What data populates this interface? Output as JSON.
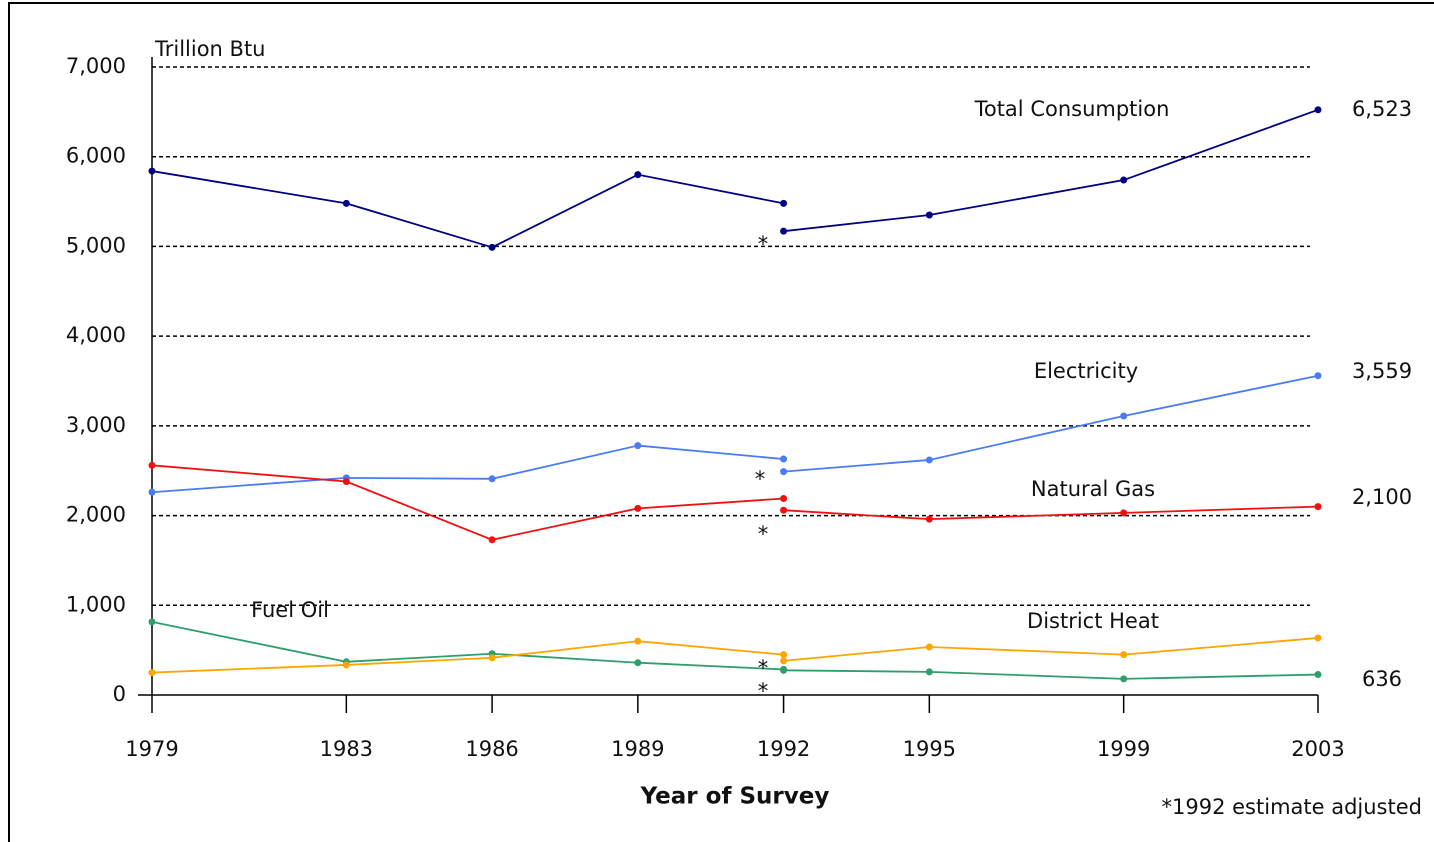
{
  "chart_data": {
    "type": "line",
    "title": "Trillion Btu",
    "x_label": "Year of Survey",
    "footnote": "*1992 estimate adjusted",
    "adjusted_marker": "*",
    "x": [
      1979,
      1983,
      1986,
      1989,
      1992,
      1992,
      1992,
      1995,
      1999,
      2003
    ],
    "xlim": [
      1979,
      2003
    ],
    "xticks": [
      1979,
      1983,
      1986,
      1989,
      1992,
      1995,
      1999,
      2003
    ],
    "ylim": [
      0,
      7000
    ],
    "yticks": [
      0,
      {
        "value": 1000,
        "label": "1,000"
      },
      {
        "value": 2000,
        "label": "2,000"
      },
      {
        "value": 3000,
        "label": "3,000"
      },
      {
        "value": 4000,
        "label": "4,000"
      },
      {
        "value": 5000,
        "label": "5,000"
      },
      {
        "value": 6000,
        "label": "6,000"
      },
      {
        "value": 7000,
        "label": "7,000"
      }
    ],
    "grid": true,
    "series": [
      {
        "name": "Total Consumption",
        "color": "#000080",
        "values": [
          5840,
          5480,
          4990,
          5800,
          5480,
          null,
          5170,
          5350,
          5740,
          6523
        ],
        "value_labels": [
          null,
          null,
          null,
          null,
          null,
          null,
          null,
          null,
          null,
          "6,523"
        ]
      },
      {
        "name": "Electricity",
        "color": "#4a7cf0",
        "values": [
          2260,
          2420,
          2410,
          2780,
          2630,
          null,
          2490,
          2620,
          3110,
          3559
        ],
        "value_labels": [
          null,
          null,
          null,
          null,
          null,
          null,
          null,
          null,
          null,
          "3,559"
        ]
      },
      {
        "name": "Natural Gas",
        "color": "#f01010",
        "values": [
          2560,
          2380,
          1730,
          2080,
          2190,
          null,
          2060,
          1960,
          2030,
          2100
        ],
        "value_labels": [
          null,
          null,
          null,
          null,
          null,
          null,
          null,
          null,
          null,
          "2,100"
        ]
      },
      {
        "name": "Fuel Oil",
        "color": "#2e9e6a",
        "values": [
          815,
          370,
          460,
          360,
          285,
          null,
          275,
          258,
          180,
          228
        ],
        "value_labels": [
          null,
          null,
          null,
          null,
          null,
          null,
          null,
          null,
          null,
          null
        ]
      },
      {
        "name": "District Heat",
        "color": "#ffa500",
        "values": [
          250,
          335,
          415,
          600,
          450,
          null,
          380,
          535,
          450,
          636
        ],
        "value_labels": [
          null,
          null,
          null,
          null,
          null,
          null,
          null,
          null,
          null,
          "636"
        ]
      }
    ]
  }
}
